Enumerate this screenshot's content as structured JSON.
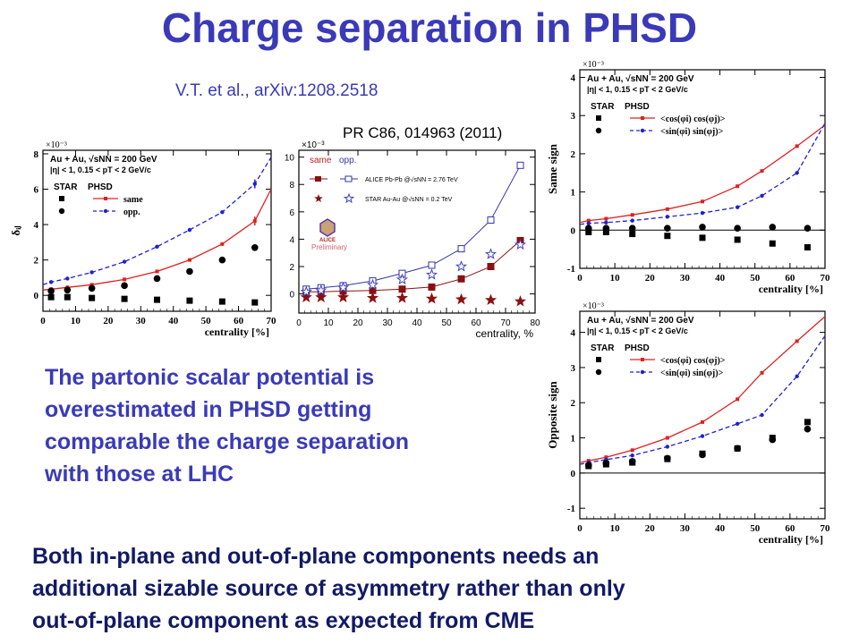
{
  "slide": {
    "title": "Charge separation in PHSD",
    "ref_top": "V.T. et al., arXiv:1208.2518",
    "ref_prc": "PR C86, 014963 (2011)",
    "mid_lines": [
      " The partonic scalar potential is",
      "overestimated in PHSD getting",
      "comparable the charge separation",
      "with those at LHC"
    ],
    "bottom_lines": [
      "Both in-plane and out-of-plane components needs an",
      "additional sizable source of asymmetry rather than only",
      "out-of-plane  component as expected from CME"
    ]
  },
  "chart_data": [
    {
      "id": "c1",
      "type": "line",
      "scale_label": "×10⁻³",
      "ylabel": "δᵢⱼ",
      "xlabel": "centrality [%]",
      "xlim": [
        0,
        70
      ],
      "ylim": [
        -0.9,
        8.2
      ],
      "xticks": [
        0,
        10,
        20,
        30,
        40,
        50,
        60,
        70
      ],
      "yticks": [
        0,
        2,
        4,
        6,
        8
      ],
      "legend": {
        "line1": "Au + Au, √sNN = 200 GeV",
        "line2": "|η| < 1,  0.15 < pT < 2 GeV/c",
        "star": "STAR",
        "phsd": "PHSD",
        "same": "same",
        "opp": "opp."
      },
      "series": [
        {
          "name": "same",
          "style": "phsd-solid",
          "color": "#e02020",
          "x": [
            0,
            2.5,
            7.5,
            15,
            25,
            35,
            45,
            55,
            65,
            70
          ],
          "y": [
            0.3,
            0.35,
            0.45,
            0.6,
            0.9,
            1.35,
            2.0,
            2.9,
            4.2,
            6.0
          ]
        },
        {
          "name": "opp.",
          "style": "phsd-dashed",
          "color": "#2020d0",
          "x": [
            0,
            2.5,
            7.5,
            15,
            25,
            35,
            45,
            55,
            65,
            70
          ],
          "y": [
            0.6,
            0.75,
            0.95,
            1.3,
            1.9,
            2.75,
            3.7,
            4.7,
            6.3,
            7.8
          ]
        },
        {
          "name": "STAR same",
          "style": "square",
          "x": [
            2.5,
            7.5,
            15,
            25,
            35,
            45,
            55,
            65
          ],
          "y": [
            -0.1,
            -0.1,
            -0.15,
            -0.2,
            -0.25,
            -0.3,
            -0.35,
            -0.4
          ]
        },
        {
          "name": "STAR opp.",
          "style": "circle",
          "x": [
            2.5,
            7.5,
            15,
            25,
            35,
            45,
            55,
            65
          ],
          "y": [
            0.25,
            0.3,
            0.4,
            0.55,
            0.95,
            1.35,
            2.0,
            2.7
          ]
        }
      ],
      "errorbars": [
        {
          "x": 65,
          "y": 4.2,
          "err": 0.25,
          "color": "#e02020"
        },
        {
          "x": 65,
          "y": 6.3,
          "err": 0.25,
          "color": "#2020d0"
        }
      ]
    },
    {
      "id": "c2",
      "type": "line",
      "scale_label": "×10⁻³",
      "xlabel": "centrality, %",
      "xlim": [
        0,
        80
      ],
      "ylim": [
        -1.4,
        10.5
      ],
      "xticks": [
        0,
        10,
        20,
        30,
        40,
        50,
        60,
        70,
        80
      ],
      "yticks": [
        0,
        2,
        4,
        6,
        8,
        10
      ],
      "legend": {
        "same": "same",
        "opp": "opp.",
        "alice": "ALICE Pb-Pb @√sNN = 2.76 TeV",
        "star": "STAR Au-Au @√sNN = 0.2 TeV",
        "prelim": "Preliminary",
        "logo": "ALICE"
      },
      "series": [
        {
          "name": "ALICE same",
          "style": "filled-square-line",
          "color": "#8b1010",
          "x": [
            2.5,
            7.5,
            15,
            25,
            35,
            45,
            55,
            65,
            75
          ],
          "y": [
            0.15,
            0.15,
            0.2,
            0.25,
            0.35,
            0.5,
            1.1,
            2.0,
            3.9
          ]
        },
        {
          "name": "ALICE opp.",
          "style": "open-square-line",
          "color": "#3434a8",
          "x": [
            2.5,
            7.5,
            15,
            25,
            35,
            45,
            55,
            65,
            75
          ],
          "y": [
            0.35,
            0.45,
            0.6,
            0.95,
            1.5,
            2.1,
            3.3,
            5.4,
            9.4
          ]
        },
        {
          "name": "STAR same",
          "style": "filled-star",
          "color": "#8b1010",
          "x": [
            2.5,
            7.5,
            15,
            25,
            35,
            45,
            55,
            65,
            75
          ],
          "y": [
            -0.25,
            -0.25,
            -0.25,
            -0.3,
            -0.3,
            -0.35,
            -0.4,
            -0.45,
            -0.55
          ]
        },
        {
          "name": "STAR opp.",
          "style": "open-star",
          "color": "#4040c0",
          "x": [
            2.5,
            7.5,
            15,
            25,
            35,
            45,
            55,
            65,
            75
          ],
          "y": [
            0.15,
            0.25,
            0.45,
            0.65,
            1.05,
            1.4,
            2.0,
            2.9,
            3.6
          ]
        }
      ]
    },
    {
      "id": "c3",
      "type": "line",
      "scale_label": "×10⁻³",
      "ylabel": "Same sign",
      "xlabel": "centrality [%]",
      "xlim": [
        0,
        70
      ],
      "ylim": [
        -1,
        4.2
      ],
      "xticks": [
        0,
        10,
        20,
        30,
        40,
        50,
        60,
        70
      ],
      "yticks": [
        -1,
        0,
        1,
        2,
        3,
        4
      ],
      "legend": {
        "line1": "Au + Au, √sNN = 200 GeV",
        "line2": "|η| < 1,  0.15 < pT < 2 GeV/c",
        "star": "STAR",
        "phsd": "PHSD",
        "cos": "<cos(φi) cos(φj)>",
        "sin": "<sin(φi) sin(φj)>"
      },
      "series": [
        {
          "name": "<cos(φi) cos(φj)>",
          "style": "phsd-solid",
          "color": "#e02020",
          "x": [
            0,
            2.5,
            7.5,
            15,
            25,
            35,
            45,
            52,
            62,
            70
          ],
          "y": [
            0.2,
            0.25,
            0.3,
            0.4,
            0.55,
            0.75,
            1.15,
            1.55,
            2.2,
            2.75
          ]
        },
        {
          "name": "<sin(φi) sin(φj)>",
          "style": "phsd-dashed",
          "color": "#2020d0",
          "x": [
            0,
            2.5,
            7.5,
            15,
            25,
            35,
            45,
            52,
            62,
            70
          ],
          "y": [
            0.15,
            0.18,
            0.2,
            0.25,
            0.35,
            0.45,
            0.6,
            0.9,
            1.5,
            2.8
          ]
        },
        {
          "name": "STAR cos",
          "style": "square",
          "x": [
            2.5,
            7.5,
            15,
            25,
            35,
            45,
            55,
            65
          ],
          "y": [
            -0.05,
            -0.05,
            -0.1,
            -0.15,
            -0.2,
            -0.25,
            -0.35,
            -0.45
          ]
        },
        {
          "name": "STAR sin",
          "style": "circle",
          "x": [
            2.5,
            7.5,
            15,
            25,
            35,
            45,
            55,
            65
          ],
          "y": [
            0.05,
            0.05,
            0.05,
            0.05,
            0.08,
            0.05,
            0.08,
            0.05
          ]
        }
      ]
    },
    {
      "id": "c4",
      "type": "line",
      "scale_label": "×10⁻³",
      "ylabel": "Opposite sign",
      "xlabel": "centrality [%]",
      "xlim": [
        0,
        70
      ],
      "ylim": [
        -1.3,
        4.6
      ],
      "xticks": [
        0,
        10,
        20,
        30,
        40,
        50,
        60,
        70
      ],
      "yticks": [
        -1,
        0,
        1,
        2,
        3,
        4
      ],
      "legend": {
        "line1": "Au + Au, √sNN = 200 GeV",
        "line2": "|η| < 1,  0.15 < pT < 2 GeV/c",
        "star": "STAR",
        "phsd": "PHSD",
        "cos": "<cos(φi) cos(φj)>",
        "sin": "<sin(φi) sin(φj)>"
      },
      "series": [
        {
          "name": "<cos(φi) cos(φj)>",
          "style": "phsd-solid",
          "color": "#e02020",
          "x": [
            0,
            2.5,
            7.5,
            15,
            25,
            35,
            45,
            52,
            62,
            70
          ],
          "y": [
            0.3,
            0.35,
            0.45,
            0.65,
            1.0,
            1.45,
            2.1,
            2.85,
            3.75,
            4.45
          ]
        },
        {
          "name": "<sin(φi) sin(φj)>",
          "style": "phsd-dashed",
          "color": "#2020d0",
          "x": [
            0,
            2.5,
            7.5,
            15,
            25,
            35,
            45,
            52,
            62,
            70
          ],
          "y": [
            0.25,
            0.3,
            0.38,
            0.5,
            0.75,
            1.05,
            1.4,
            1.65,
            2.75,
            3.9
          ]
        },
        {
          "name": "STAR cos",
          "style": "square",
          "x": [
            2.5,
            7.5,
            15,
            25,
            35,
            45,
            55,
            65
          ],
          "y": [
            0.2,
            0.25,
            0.3,
            0.4,
            0.55,
            0.7,
            1.0,
            1.45
          ]
        },
        {
          "name": "STAR sin",
          "style": "circle",
          "x": [
            2.5,
            7.5,
            15,
            25,
            35,
            45,
            55,
            65
          ],
          "y": [
            0.22,
            0.28,
            0.33,
            0.42,
            0.52,
            0.7,
            0.95,
            1.25
          ]
        }
      ]
    }
  ]
}
